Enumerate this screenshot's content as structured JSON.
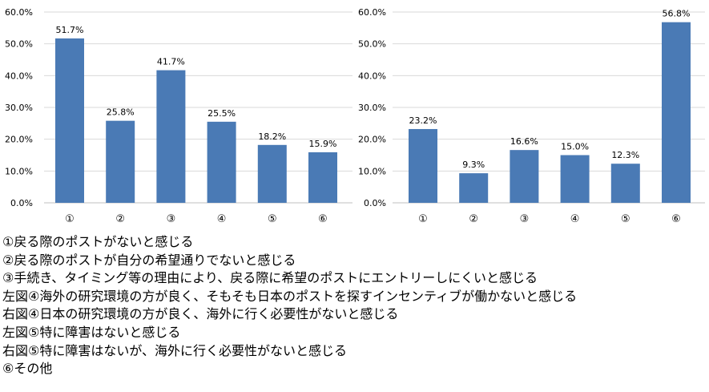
{
  "chart_data": [
    {
      "type": "bar",
      "categories": [
        "①",
        "②",
        "③",
        "④",
        "⑤",
        "⑥"
      ],
      "values": [
        51.7,
        25.8,
        41.7,
        25.5,
        18.2,
        15.9
      ],
      "data_labels": [
        "51.7%",
        "25.8%",
        "41.7%",
        "25.5%",
        "18.2%",
        "15.9%"
      ],
      "yticks": [
        "0.0%",
        "10.0%",
        "20.0%",
        "30.0%",
        "40.0%",
        "50.0%",
        "60.0%"
      ],
      "ylim": [
        0,
        60
      ],
      "grid": true,
      "bar_color": "#4a7ab5"
    },
    {
      "type": "bar",
      "categories": [
        "①",
        "②",
        "③",
        "④",
        "⑤",
        "⑥"
      ],
      "values": [
        23.2,
        9.3,
        16.6,
        15.0,
        12.3,
        56.8
      ],
      "data_labels": [
        "23.2%",
        "9.3%",
        "16.6%",
        "15.0%",
        "12.3%",
        "56.8%"
      ],
      "yticks": [
        "0.0%",
        "10.0%",
        "20.0%",
        "30.0%",
        "40.0%",
        "50.0%",
        "60.0%"
      ],
      "ylim": [
        0,
        60
      ],
      "grid": true,
      "bar_color": "#4a7ab5"
    }
  ],
  "legend": [
    "①戻る際のポストがないと感じる",
    "②戻る際のポストが自分の希望通りでないと感じる",
    "③手続き、タイミング等の理由により、戻る際に希望のポストにエントリーしにくいと感じる",
    "左図④海外の研究環境の方が良く、そもそも日本のポストを探すインセンティブが働かないと感じる",
    "右図④日本の研究環境の方が良く、海外に行く必要性がないと感じる",
    "左図⑤特に障害はないと感じる",
    "右図⑤特に障害はないが、海外に行く必要性がないと感じる",
    "⑥その他"
  ]
}
